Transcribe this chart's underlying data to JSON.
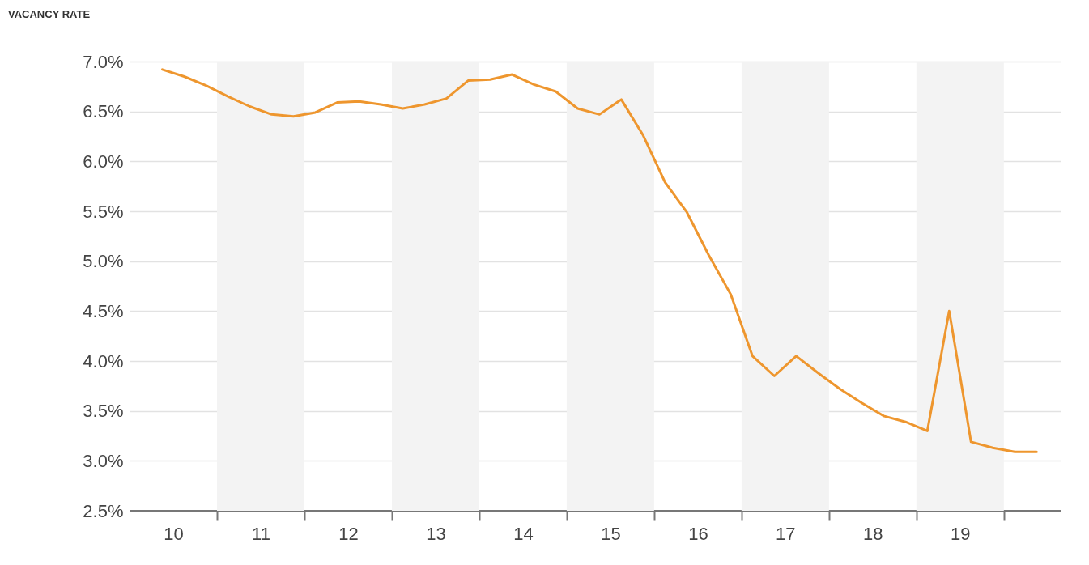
{
  "chart_data": {
    "type": "line",
    "title": "VACANCY RATE",
    "x": [
      9.875,
      10.125,
      10.375,
      10.625,
      10.875,
      11.125,
      11.375,
      11.625,
      11.875,
      12.125,
      12.375,
      12.625,
      12.875,
      13.125,
      13.375,
      13.625,
      13.875,
      14.125,
      14.375,
      14.625,
      14.875,
      15.125,
      15.375,
      15.625,
      15.875,
      16.125,
      16.375,
      16.625,
      16.875,
      17.125,
      17.375,
      17.625,
      17.875,
      18.125,
      18.375,
      18.625,
      18.875,
      19.125,
      19.375,
      19.625,
      19.875
    ],
    "series": [
      {
        "color": "#ee962e",
        "values": [
          6.92,
          6.85,
          6.76,
          6.65,
          6.55,
          6.47,
          6.45,
          6.49,
          6.59,
          6.6,
          6.57,
          6.53,
          6.57,
          6.63,
          6.81,
          6.82,
          6.87,
          6.77,
          6.7,
          6.53,
          6.47,
          6.62,
          6.26,
          5.79,
          5.49,
          5.06,
          4.67,
          4.05,
          3.85,
          4.05,
          3.88,
          3.72,
          3.58,
          3.45,
          3.39,
          3.3,
          4.5,
          3.19,
          3.13,
          3.09,
          3.09
        ]
      }
    ],
    "xlim": [
      9.5,
      20.15
    ],
    "xticks": [
      10,
      {
        "value": 10.5,
        "label": null
      },
      11,
      {
        "value": 11.5,
        "label": null
      },
      12,
      {
        "value": 12.5,
        "label": null
      },
      13,
      {
        "value": 13.5,
        "label": null
      },
      14,
      {
        "value": 14.5,
        "label": null
      },
      15,
      {
        "value": 15.5,
        "label": null
      },
      16,
      {
        "value": 16.5,
        "label": null
      },
      17,
      {
        "value": 17.5,
        "label": null
      },
      18,
      {
        "value": 18.5,
        "label": null
      },
      19,
      {
        "value": 19.5,
        "label": null
      }
    ],
    "ylim": [
      2.5,
      7.0
    ],
    "yticks": [
      {
        "value": 2.5,
        "label": "2.5%"
      },
      {
        "value": 3.0,
        "label": "3.0%"
      },
      {
        "value": 3.5,
        "label": "3.5%"
      },
      {
        "value": 4.0,
        "label": "4.0%"
      },
      {
        "value": 4.5,
        "label": "4.5%"
      },
      {
        "value": 5.0,
        "label": "5.0%"
      },
      {
        "value": 5.5,
        "label": "5.5%"
      },
      {
        "value": 6.0,
        "label": "6.0%"
      },
      {
        "value": 6.5,
        "label": "6.5%"
      },
      {
        "value": 7.0,
        "label": "7.0%"
      }
    ],
    "grid": "y",
    "bands": [
      {
        "axis": "x",
        "from": 10.5,
        "to": 11.5,
        "color": "#f3f3f3"
      },
      {
        "axis": "x",
        "from": 12.5,
        "to": 13.5,
        "color": "#f3f3f3"
      },
      {
        "axis": "x",
        "from": 14.5,
        "to": 15.5,
        "color": "#f3f3f3"
      },
      {
        "axis": "x",
        "from": 16.5,
        "to": 17.5,
        "color": "#f3f3f3"
      },
      {
        "axis": "x",
        "from": 18.5,
        "to": 19.5,
        "color": "#f3f3f3"
      }
    ]
  }
}
